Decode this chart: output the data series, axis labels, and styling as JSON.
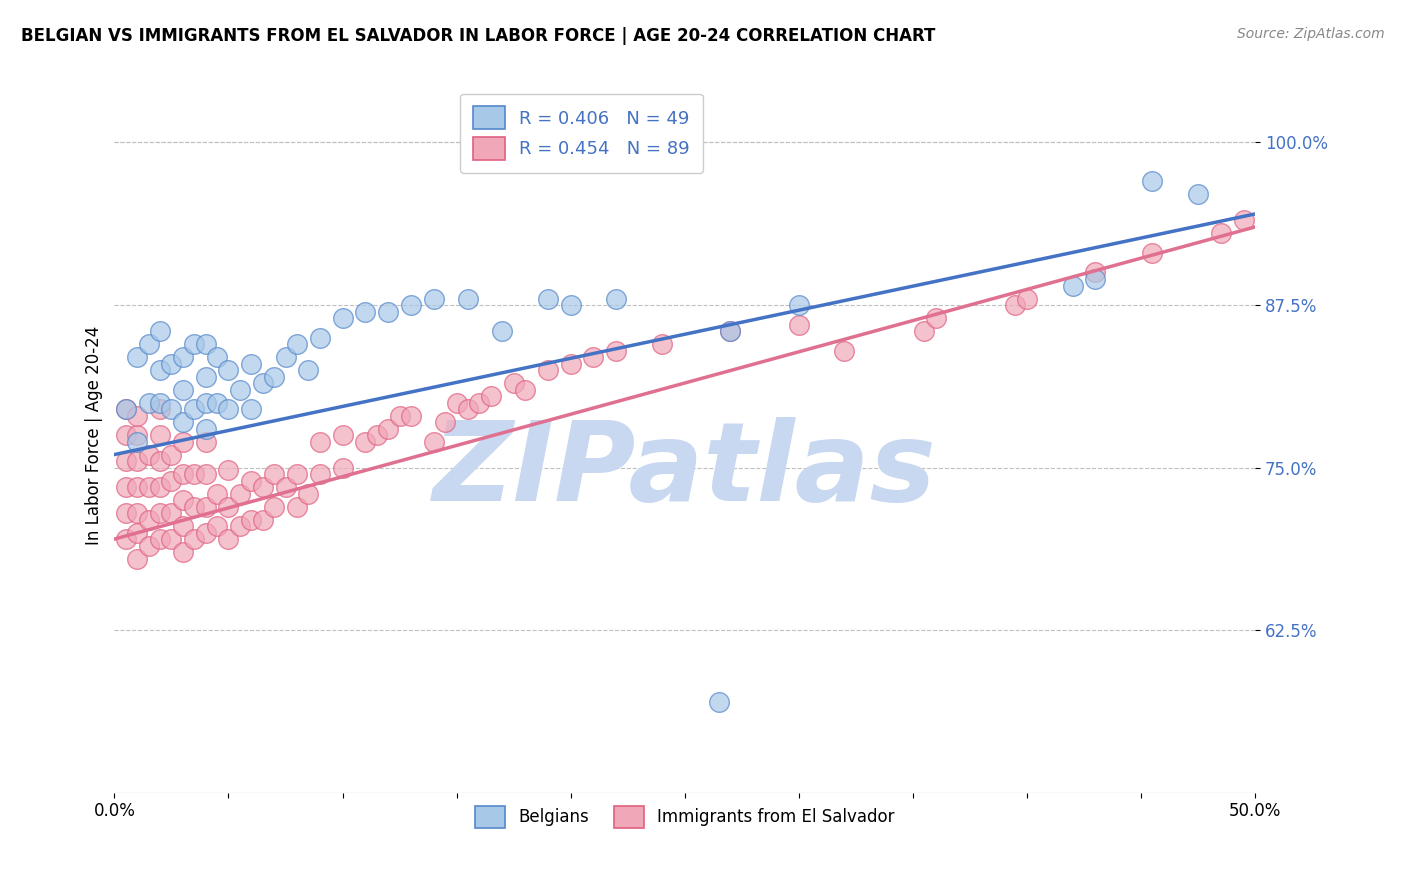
{
  "title": "BELGIAN VS IMMIGRANTS FROM EL SALVADOR IN LABOR FORCE | AGE 20-24 CORRELATION CHART",
  "source_text": "Source: ZipAtlas.com",
  "ylabel": "In Labor Force | Age 20-24",
  "xlim": [
    0.0,
    0.5
  ],
  "ylim": [
    0.5,
    1.05
  ],
  "xticks": [
    0.0,
    0.05,
    0.1,
    0.15,
    0.2,
    0.25,
    0.3,
    0.35,
    0.4,
    0.45,
    0.5
  ],
  "xticklabels": [
    "0.0%",
    "",
    "",
    "",
    "",
    "",
    "",
    "",
    "",
    "",
    "50.0%"
  ],
  "ytick_positions": [
    0.625,
    0.75,
    0.875,
    1.0
  ],
  "ytick_labels": [
    "62.5%",
    "75.0%",
    "87.5%",
    "100.0%"
  ],
  "legend_label_blue": "Belgians",
  "legend_label_pink": "Immigrants from El Salvador",
  "blue_fill": "#A8C8E8",
  "pink_fill": "#F0A8B8",
  "blue_edge": "#5588CC",
  "pink_edge": "#E06080",
  "blue_line": "#4472C4",
  "pink_line": "#E07090",
  "watermark_color": "#C8D8F0",
  "watermark_text": "ZIPatlas",
  "background_color": "#FFFFFF",
  "grid_color": "#C0C0C0",
  "blue_x": [
    0.005,
    0.01,
    0.01,
    0.015,
    0.015,
    0.02,
    0.02,
    0.02,
    0.025,
    0.025,
    0.03,
    0.03,
    0.03,
    0.035,
    0.035,
    0.04,
    0.04,
    0.04,
    0.04,
    0.045,
    0.045,
    0.05,
    0.05,
    0.055,
    0.06,
    0.06,
    0.065,
    0.07,
    0.075,
    0.08,
    0.085,
    0.09,
    0.1,
    0.11,
    0.12,
    0.13,
    0.14,
    0.155,
    0.17,
    0.19,
    0.2,
    0.22,
    0.265,
    0.27,
    0.3,
    0.42,
    0.43,
    0.455,
    0.475
  ],
  "blue_y": [
    0.795,
    0.77,
    0.835,
    0.8,
    0.845,
    0.8,
    0.825,
    0.855,
    0.795,
    0.83,
    0.785,
    0.81,
    0.835,
    0.795,
    0.845,
    0.78,
    0.8,
    0.82,
    0.845,
    0.8,
    0.835,
    0.795,
    0.825,
    0.81,
    0.795,
    0.83,
    0.815,
    0.82,
    0.835,
    0.845,
    0.825,
    0.85,
    0.865,
    0.87,
    0.87,
    0.875,
    0.88,
    0.88,
    0.855,
    0.88,
    0.875,
    0.88,
    0.57,
    0.855,
    0.875,
    0.89,
    0.895,
    0.97,
    0.96
  ],
  "pink_x": [
    0.005,
    0.005,
    0.005,
    0.005,
    0.005,
    0.005,
    0.01,
    0.01,
    0.01,
    0.01,
    0.01,
    0.01,
    0.01,
    0.015,
    0.015,
    0.015,
    0.015,
    0.02,
    0.02,
    0.02,
    0.02,
    0.02,
    0.02,
    0.025,
    0.025,
    0.025,
    0.025,
    0.03,
    0.03,
    0.03,
    0.03,
    0.03,
    0.035,
    0.035,
    0.035,
    0.04,
    0.04,
    0.04,
    0.04,
    0.045,
    0.045,
    0.05,
    0.05,
    0.05,
    0.055,
    0.055,
    0.06,
    0.06,
    0.065,
    0.065,
    0.07,
    0.07,
    0.075,
    0.08,
    0.08,
    0.085,
    0.09,
    0.09,
    0.1,
    0.1,
    0.11,
    0.115,
    0.12,
    0.125,
    0.13,
    0.14,
    0.145,
    0.15,
    0.155,
    0.16,
    0.165,
    0.175,
    0.18,
    0.19,
    0.2,
    0.21,
    0.22,
    0.24,
    0.27,
    0.3,
    0.32,
    0.355,
    0.36,
    0.395,
    0.4,
    0.43,
    0.455,
    0.485,
    0.495
  ],
  "pink_y": [
    0.695,
    0.715,
    0.735,
    0.755,
    0.775,
    0.795,
    0.68,
    0.7,
    0.715,
    0.735,
    0.755,
    0.775,
    0.79,
    0.69,
    0.71,
    0.735,
    0.76,
    0.695,
    0.715,
    0.735,
    0.755,
    0.775,
    0.795,
    0.695,
    0.715,
    0.74,
    0.76,
    0.685,
    0.705,
    0.725,
    0.745,
    0.77,
    0.695,
    0.72,
    0.745,
    0.7,
    0.72,
    0.745,
    0.77,
    0.705,
    0.73,
    0.695,
    0.72,
    0.748,
    0.705,
    0.73,
    0.71,
    0.74,
    0.71,
    0.735,
    0.72,
    0.745,
    0.735,
    0.72,
    0.745,
    0.73,
    0.745,
    0.77,
    0.75,
    0.775,
    0.77,
    0.775,
    0.78,
    0.79,
    0.79,
    0.77,
    0.785,
    0.8,
    0.795,
    0.8,
    0.805,
    0.815,
    0.81,
    0.825,
    0.83,
    0.835,
    0.84,
    0.845,
    0.855,
    0.86,
    0.84,
    0.855,
    0.865,
    0.875,
    0.88,
    0.9,
    0.915,
    0.93,
    0.94
  ],
  "blue_trendline_x0": 0.0,
  "blue_trendline_y0": 0.76,
  "blue_trendline_x1": 0.5,
  "blue_trendline_y1": 0.945,
  "pink_trendline_x0": 0.0,
  "pink_trendline_y0": 0.695,
  "pink_trendline_x1": 0.5,
  "pink_trendline_y1": 0.935
}
